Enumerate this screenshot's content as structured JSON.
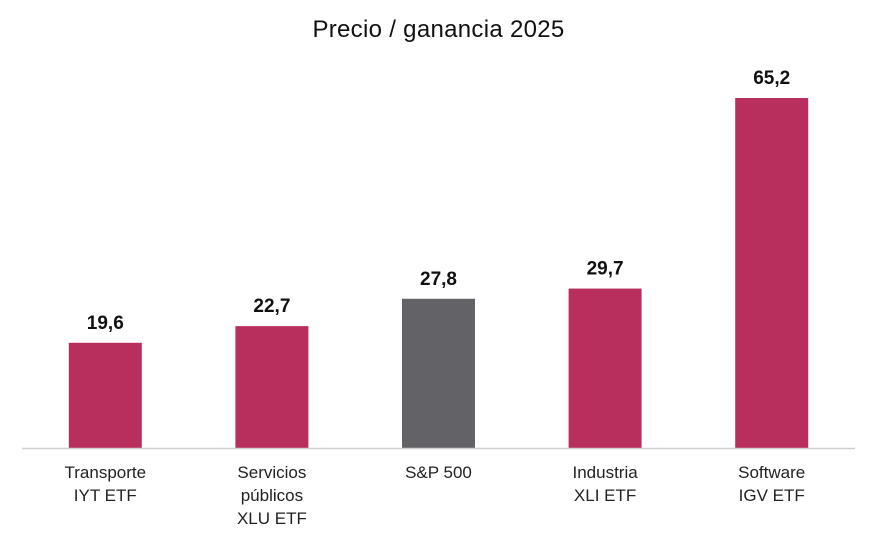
{
  "chart_data": {
    "type": "bar",
    "title": "Precio / ganancia 2025",
    "categories": [
      [
        "Transporte",
        "IYT ETF"
      ],
      [
        "Servicios",
        "públicos",
        "XLU ETF"
      ],
      [
        "S&P 500"
      ],
      [
        "Industria",
        "XLI ETF"
      ],
      [
        "Software",
        "IGV ETF"
      ]
    ],
    "values": [
      19.6,
      22.7,
      27.8,
      29.7,
      65.2
    ],
    "value_labels": [
      "19,6",
      "22,7",
      "27,8",
      "29,7",
      "65,2"
    ],
    "colors": [
      "#b82e5d",
      "#b82e5d",
      "#636367",
      "#b82e5d",
      "#b82e5d"
    ],
    "ylim": [
      0,
      70
    ],
    "grid": false,
    "xlabel": "",
    "ylabel": ""
  }
}
